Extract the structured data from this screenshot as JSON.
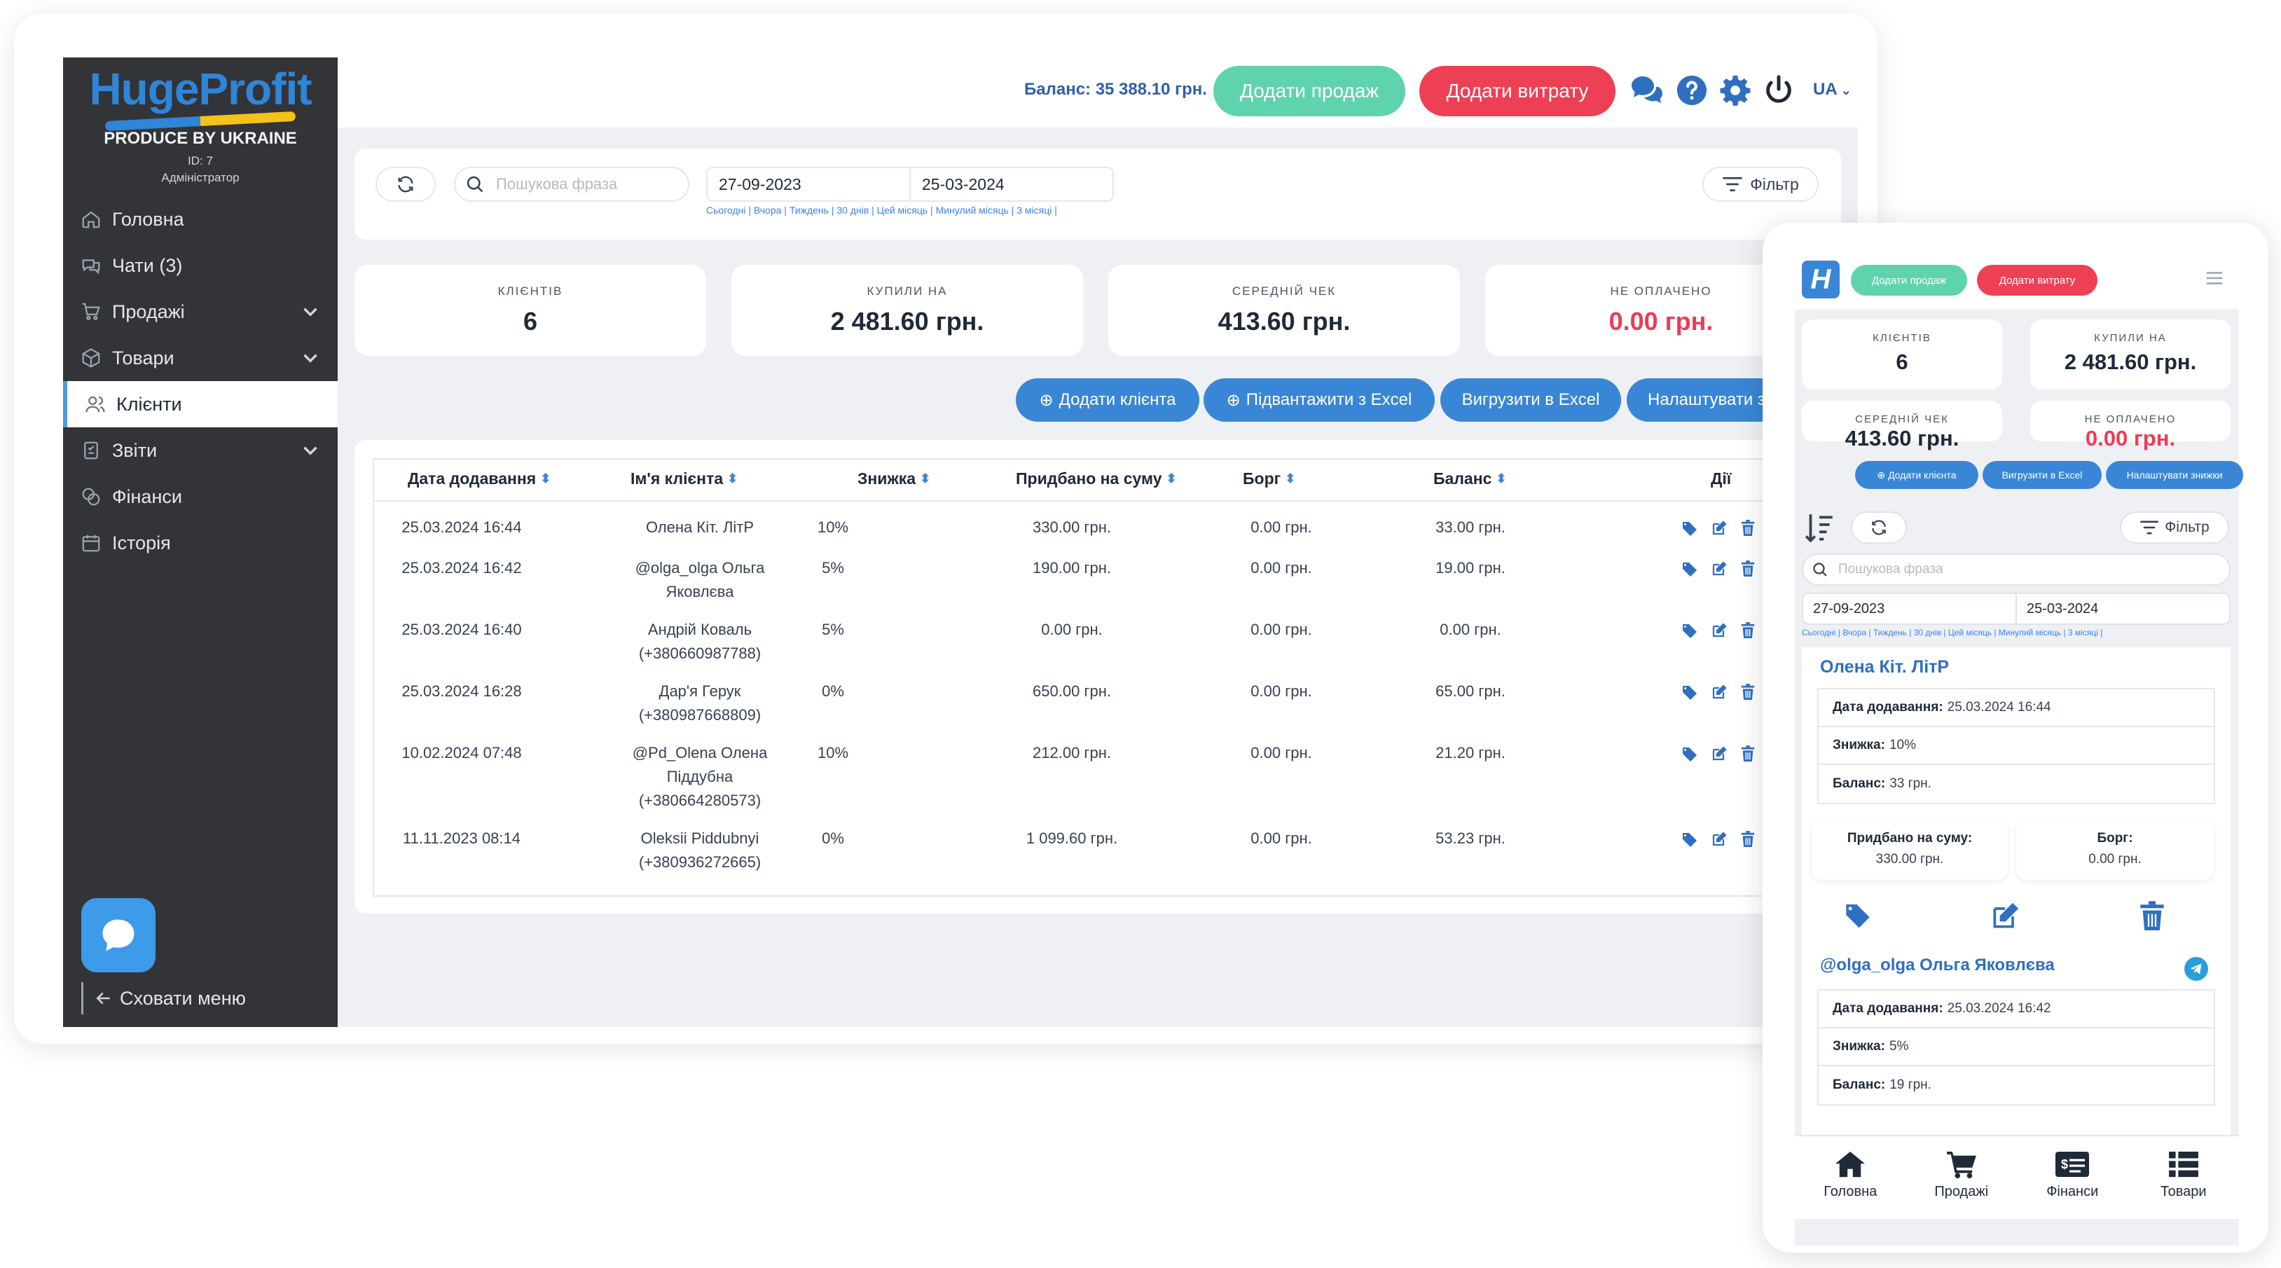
{
  "app": {
    "brand": "HugeProfit",
    "brand_sub": "PRODUCE BY UKRAINE",
    "user_id": "ID: 7",
    "user_role": "Адміністратор"
  },
  "sidebar": {
    "items": [
      {
        "label": "Головна",
        "icon": "home-icon"
      },
      {
        "label": "Чати (3)",
        "icon": "chat-icon"
      },
      {
        "label": "Продажі",
        "icon": "cart-icon"
      },
      {
        "label": "Товари",
        "icon": "box-icon"
      },
      {
        "label": "Клієнти",
        "icon": "users-icon"
      },
      {
        "label": "Звіти",
        "icon": "report-icon"
      },
      {
        "label": "Фінанси",
        "icon": "finance-icon"
      },
      {
        "label": "Історія",
        "icon": "history-icon"
      }
    ],
    "hide_menu": "Сховати меню"
  },
  "topbar": {
    "balance": "Баланс: 35 388.10 грн.",
    "add_sale": "Додати продаж",
    "add_expense": "Додати витрату",
    "lang": "UA"
  },
  "filters": {
    "search_placeholder": "Пошукова фраза",
    "date_from": "27-09-2023",
    "date_to": "25-03-2024",
    "quick_ranges": "Сьогодні | Вчора | Тиждень | 30 днів | Цей місяць | Минулий місяць | 3 місяці |",
    "filter_label": "Фільтр"
  },
  "stats": [
    {
      "label": "клієнтів",
      "value": "6",
      "red": false
    },
    {
      "label": "купили на",
      "value": "2 481.60 грн.",
      "red": false
    },
    {
      "label": "середній чек",
      "value": "413.60 грн.",
      "red": false
    },
    {
      "label": "не оплачено",
      "value": "0.00 грн.",
      "red": true
    }
  ],
  "actions": {
    "add_client": "Додати клієнта",
    "import_excel": "Підвантажити з Excel",
    "export_excel": "Вигрузити в Excel",
    "discount_settings": "Налаштувати зн",
    "discount_settings_full": "Налаштувати знижки"
  },
  "table": {
    "headers": [
      "Дата додавання",
      "Ім'я клієнта",
      "Знижка",
      "Придбано на суму",
      "Борг",
      "Баланс",
      "Дії"
    ],
    "rows": [
      {
        "date": "25.03.2024 16:44",
        "name1": "Олена Кіт. ЛітР",
        "name2": "",
        "name3": "",
        "discount": "10%",
        "sum": "330.00 грн.",
        "debt": "0.00 грн.",
        "balance": "33.00 грн."
      },
      {
        "date": "25.03.2024 16:42",
        "name1": "@olga_olga Ольга",
        "name2": "Яковлєва",
        "name3": "",
        "discount": "5%",
        "sum": "190.00 грн.",
        "debt": "0.00 грн.",
        "balance": "19.00 грн."
      },
      {
        "date": "25.03.2024 16:40",
        "name1": "Андрій Коваль",
        "name2": "(+380660987788)",
        "name3": "",
        "discount": "5%",
        "sum": "0.00 грн.",
        "debt": "0.00 грн.",
        "balance": "0.00 грн."
      },
      {
        "date": "25.03.2024 16:28",
        "name1": "Дар'я Герук",
        "name2": "(+380987668809)",
        "name3": "",
        "discount": "0%",
        "sum": "650.00 грн.",
        "debt": "0.00 грн.",
        "balance": "65.00 грн."
      },
      {
        "date": "10.02.2024 07:48",
        "name1": "@Pd_Olena Олена",
        "name2": "Піддубна",
        "name3": "(+380664280573)",
        "discount": "10%",
        "sum": "212.00 грн.",
        "debt": "0.00 грн.",
        "balance": "21.20 грн."
      },
      {
        "date": "11.11.2023 08:14",
        "name1": "Oleksii Piddubnyi",
        "name2": "(+380936272665)",
        "name3": "",
        "discount": "0%",
        "sum": "1 099.60 грн.",
        "debt": "0.00 грн.",
        "balance": "53.23 грн."
      }
    ]
  },
  "mobile": {
    "logo_letter": "H",
    "cards": [
      {
        "name": "Олена Кіт. ЛітР",
        "date_label": "Дата додавання:",
        "date": "25.03.2024 16:44",
        "discount_label": "Знижка:",
        "discount": "10%",
        "balance_label": "Баланс:",
        "balance": "33 грн.",
        "sum_label": "Придбано на суму:",
        "sum": "330.00 грн.",
        "debt_label": "Борг:",
        "debt": "0.00 грн."
      },
      {
        "name": "@olga_olga Ольга Яковлєва",
        "date_label": "Дата додавання:",
        "date": "25.03.2024 16:42",
        "discount_label": "Знижка:",
        "discount": "5%",
        "balance_label": "Баланс:",
        "balance": "19 грн."
      }
    ],
    "bottom_nav": [
      "Головна",
      "Продажі",
      "Фінанси",
      "Товари"
    ]
  },
  "colors": {
    "sidebar": "#333438",
    "accent_blue": "#3a86d6",
    "green": "#5fd3ad",
    "red": "#ee4055",
    "unpaid_red": "#ef3b55"
  }
}
